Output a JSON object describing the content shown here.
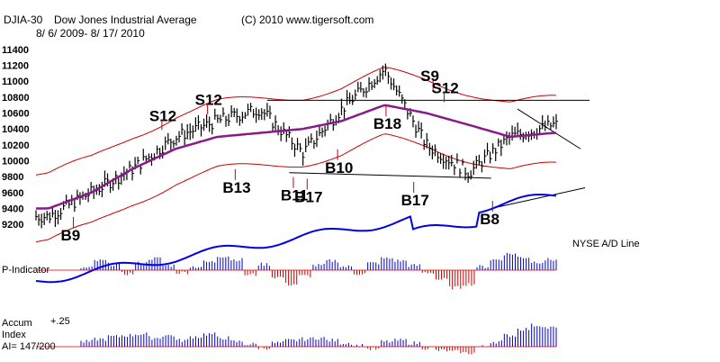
{
  "header": {
    "symbol": "DJIA-30",
    "name": "Dow Jones Industrial Average",
    "copyright": "(C) 2010 www.tigersoft.com",
    "date_range": "8/ 6/ 2009- 8/ 17/ 2010"
  },
  "chart_data": {
    "type": "line",
    "title": "DJIA-30  Dow Jones Industrial Average",
    "ylim": [
      9100,
      11500
    ],
    "y_ticks": [
      "11400",
      "11200",
      "11000",
      "10800",
      "10600",
      "10400",
      "10200",
      "10000",
      "9800",
      "9600",
      "9400",
      "9200"
    ],
    "y_tick_values": [
      11400,
      11200,
      11000,
      10800,
      10600,
      10400,
      10200,
      10000,
      9800,
      9600,
      9400,
      9200
    ],
    "x_range": [
      "2009-08-06",
      "2010-08-17"
    ],
    "series": [
      {
        "x": [
          "2009-08",
          "2009-09",
          "2009-10",
          "2009-11",
          "2009-12",
          "2010-01",
          "2010-02",
          "2010-03",
          "2010-04",
          "2010-05",
          "2010-06",
          "2010-07",
          "2010-08"
        ],
        "values": [
          9300,
          9600,
          9900,
          10300,
          10500,
          10650,
          10100,
          10650,
          11150,
          10200,
          9850,
          10300,
          10450
        ]
      }
    ],
    "moving_average": [
      9400,
      9600,
      9900,
      10150,
      10300,
      10350,
      10400,
      10500,
      10700,
      10600,
      10450,
      10300,
      10350
    ],
    "signals": [
      {
        "label": "S12",
        "x": "2009-11-05",
        "value": 10500
      },
      {
        "label": "S12",
        "x": "2009-12-08",
        "value": 10700
      },
      {
        "label": "B13",
        "x": "2009-12-28",
        "value": 9600
      },
      {
        "label": "B11",
        "x": "2010-02-08",
        "value": 9500
      },
      {
        "label": "B17",
        "x": "2010-02-18",
        "value": 9480
      },
      {
        "label": "B10",
        "x": "2010-03-12",
        "value": 9850
      },
      {
        "label": "B18",
        "x": "2010-04-16",
        "value": 10400
      },
      {
        "label": "S9",
        "x": "2010-05-20",
        "value": 11000
      },
      {
        "label": "S12",
        "x": "2010-05-28",
        "value": 10850
      },
      {
        "label": "B17",
        "x": "2010-05-06",
        "value": 9440
      },
      {
        "label": "B8",
        "x": "2010-07-02",
        "value": 9200
      },
      {
        "label": "B9",
        "x": "2009-09-02",
        "value": 9000
      }
    ],
    "ad_line_label": "NYSE A/D Line",
    "p_indicator": {
      "label": "P-Indicator",
      "values": [
        2,
        8,
        5,
        -3,
        6,
        10,
        4,
        -2,
        3,
        7,
        12,
        9,
        -4,
        5,
        -6,
        -12,
        -5,
        4,
        8,
        3,
        -3,
        6,
        10,
        8,
        4,
        -2,
        -8,
        -15,
        -12,
        3,
        9,
        14,
        11,
        7,
        9
      ]
    },
    "accum_index": {
      "label": "Accum Index",
      "reading": "AI= 147/200",
      "top_tick": "+.25",
      "values": [
        4,
        6,
        8,
        9,
        10,
        7,
        9,
        5,
        8,
        10,
        7,
        4,
        2,
        -1,
        3,
        5,
        6,
        7,
        5,
        3,
        1,
        -2,
        4,
        5,
        3,
        -1,
        -3,
        -4,
        -5,
        0,
        4,
        9,
        14,
        17,
        15
      ]
    }
  }
}
